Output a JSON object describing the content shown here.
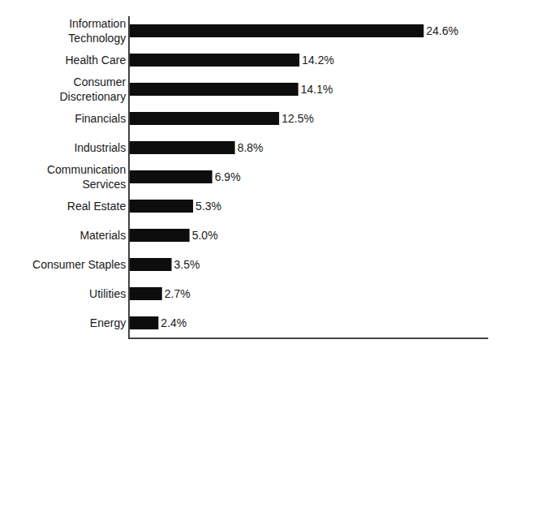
{
  "chart_data": {
    "type": "bar",
    "orientation": "horizontal",
    "categories": [
      "Information\nTechnology",
      "Health Care",
      "Consumer\nDiscretionary",
      "Financials",
      "Industrials",
      "Communication\nServices",
      "Real Estate",
      "Materials",
      "Consumer Staples",
      "Utilities",
      "Energy"
    ],
    "values": [
      24.6,
      14.2,
      14.1,
      12.5,
      8.8,
      6.9,
      5.3,
      5.0,
      3.5,
      2.7,
      2.4
    ],
    "value_labels": [
      "24.6%",
      "14.2%",
      "14.1%",
      "12.5%",
      "8.8%",
      "6.9%",
      "5.3%",
      "5.0%",
      "3.5%",
      "2.7%",
      "2.4%"
    ],
    "data_labels": true,
    "color": "#0d0d0d",
    "xlim": [
      0,
      30
    ],
    "xticks": [],
    "tick_labels": "y",
    "grid": false
  }
}
